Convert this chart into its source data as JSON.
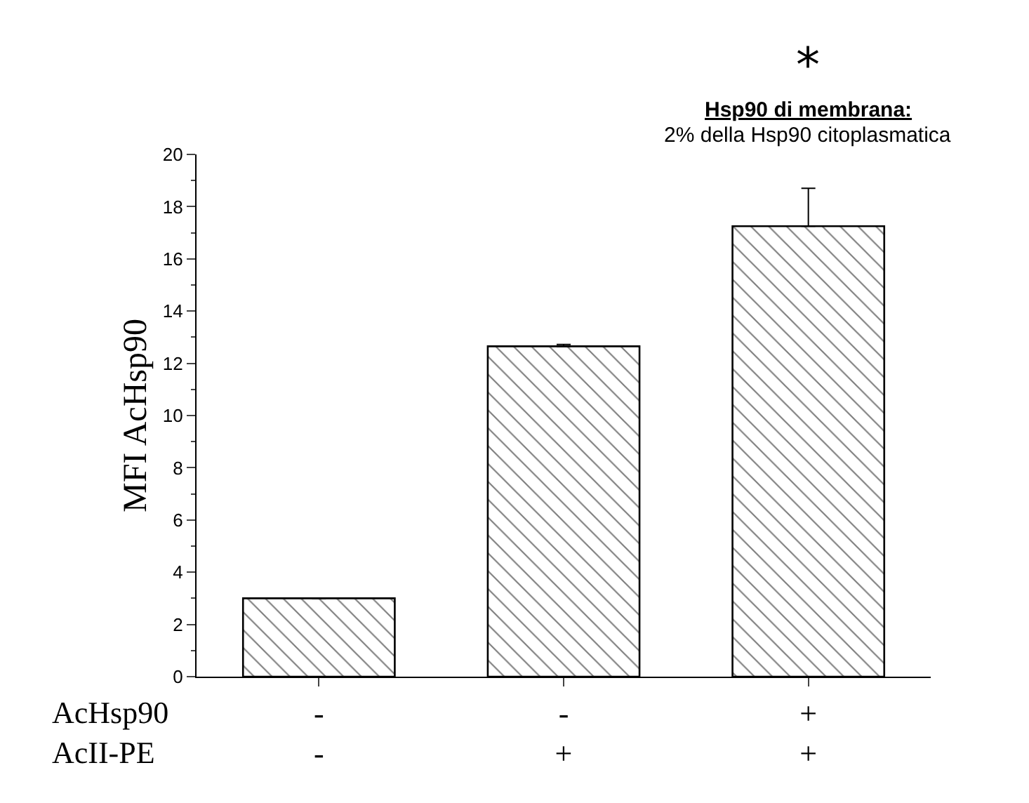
{
  "chart_data": {
    "type": "bar",
    "ylabel": "MFI AcHsp90",
    "categories": [
      "-\n-",
      "-\n+",
      "+\n+"
    ],
    "values": [
      3.0,
      12.65,
      17.25
    ],
    "errors": [
      null,
      0.07,
      1.45
    ],
    "color": "#000000",
    "ylim": [
      0,
      20
    ],
    "yticks": [
      0,
      2,
      4,
      6,
      8,
      10,
      12,
      14,
      16,
      18,
      20
    ],
    "legend": false,
    "annotations": [
      "AcHsp90\nAcII-PE",
      "*",
      "Hsp90 di membrana:",
      "2% della Hsp90 citoplasmatica"
    ]
  }
}
